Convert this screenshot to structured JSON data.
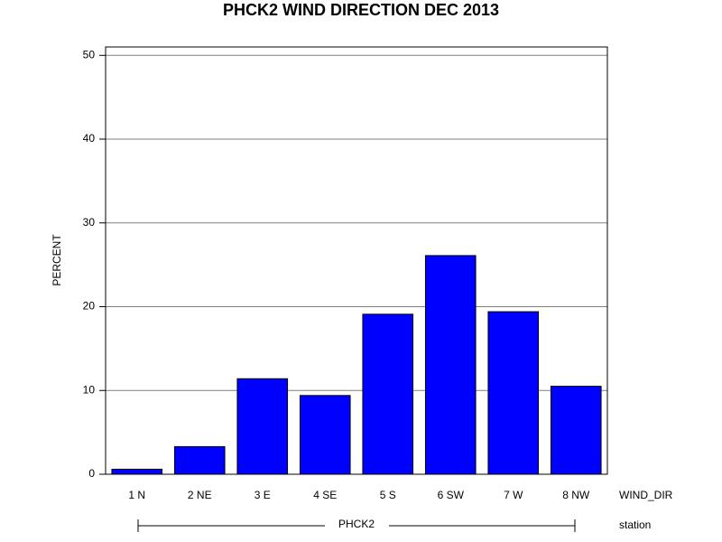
{
  "chart_data": {
    "type": "bar",
    "title": "PHCK2 WIND DIRECTION DEC 2013",
    "x_label": "WIND_DIR",
    "y_label": "PERCENT",
    "group_label": "PHCK2",
    "group_axis_label": "station",
    "categories": [
      "1 N",
      "2 NE",
      "3 E",
      "4 SE",
      "5 S",
      "6 SW",
      "7 W",
      "8 NW"
    ],
    "values": [
      0.6,
      3.3,
      11.4,
      9.4,
      19.1,
      26.1,
      19.4,
      10.5
    ],
    "color": "#0000ff",
    "ylim": [
      0,
      51
    ],
    "yticks": [
      0,
      10,
      20,
      30,
      40,
      50
    ],
    "grid": true
  }
}
